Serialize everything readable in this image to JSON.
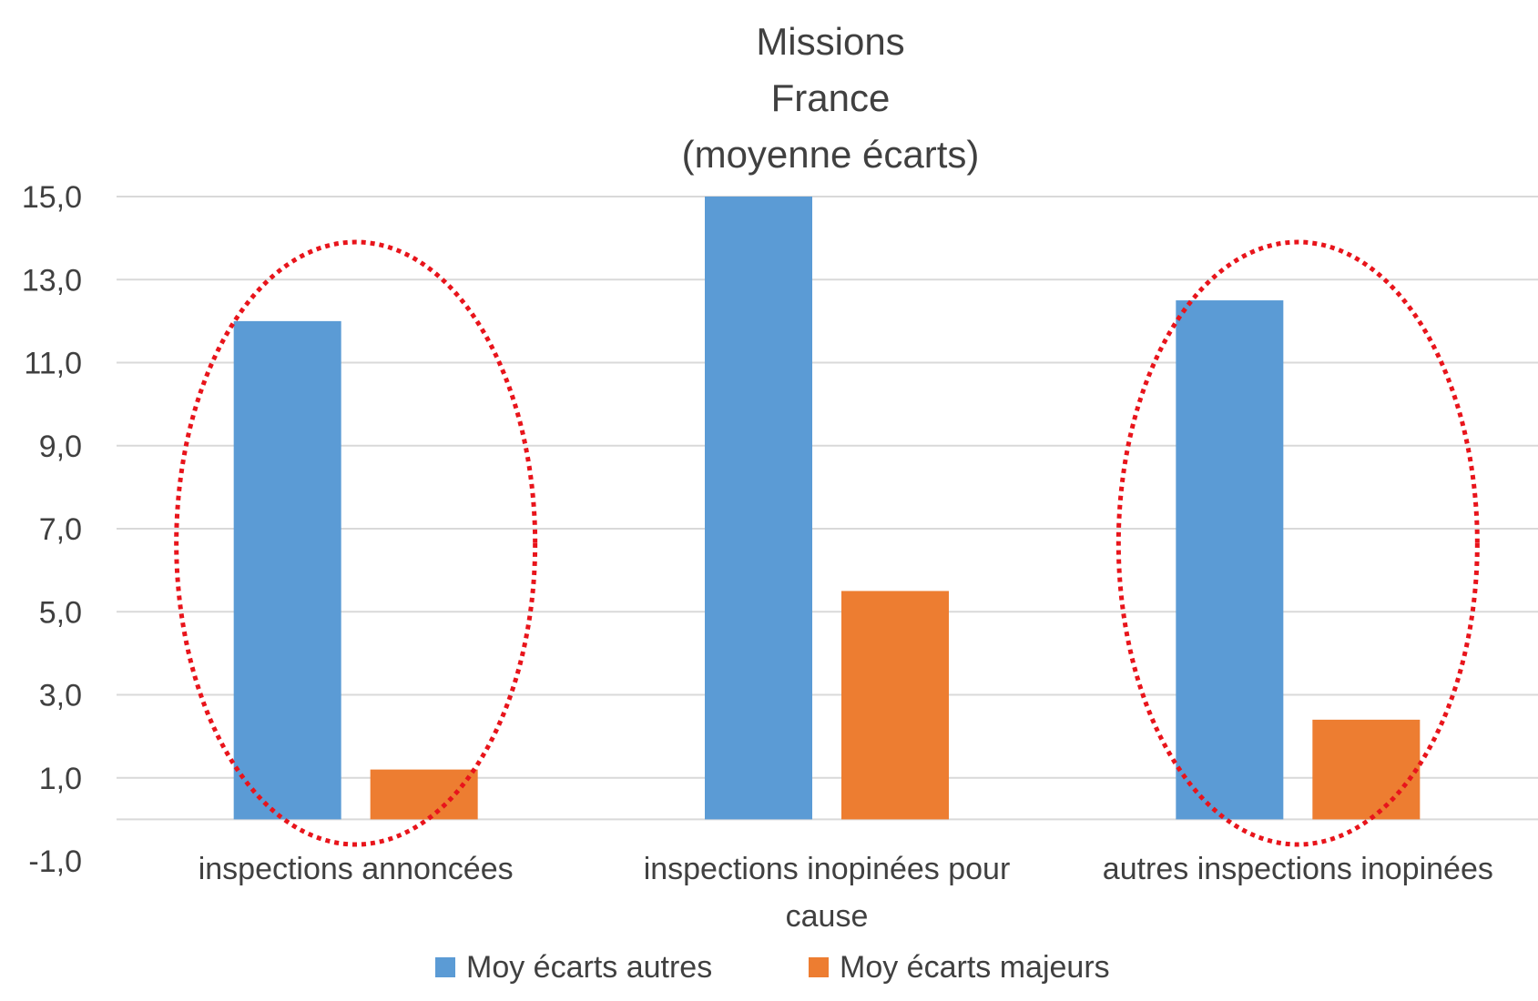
{
  "chart_data": {
    "type": "bar",
    "title": [
      "Missions",
      "France",
      "(moyenne écarts)"
    ],
    "categories": [
      [
        "inspections annoncées"
      ],
      [
        "inspections inopinées pour",
        "cause"
      ],
      [
        "autres inspections inopinées"
      ]
    ],
    "series": [
      {
        "name": "Moy écarts autres",
        "color": "#5b9bd5",
        "values": [
          12.0,
          15.0,
          12.5
        ]
      },
      {
        "name": "Moy écarts majeurs",
        "color": "#ed7d31",
        "values": [
          1.2,
          5.5,
          2.4
        ]
      }
    ],
    "ylim": [
      -1,
      15
    ],
    "yticks": [
      15,
      13,
      11,
      9,
      7,
      5,
      3,
      1,
      -1
    ],
    "ytick_labels": [
      "15,0",
      "13,0",
      "11,0",
      "9,0",
      "7,0",
      "5,0",
      "3,0",
      "1,0",
      "-1,0"
    ],
    "grid": true,
    "legend_position": "bottom",
    "annotations": [
      {
        "shape": "dotted-ellipse",
        "color": "#e8141b",
        "category_index": 0
      },
      {
        "shape": "dotted-ellipse",
        "color": "#e8141b",
        "category_index": 2
      }
    ]
  }
}
